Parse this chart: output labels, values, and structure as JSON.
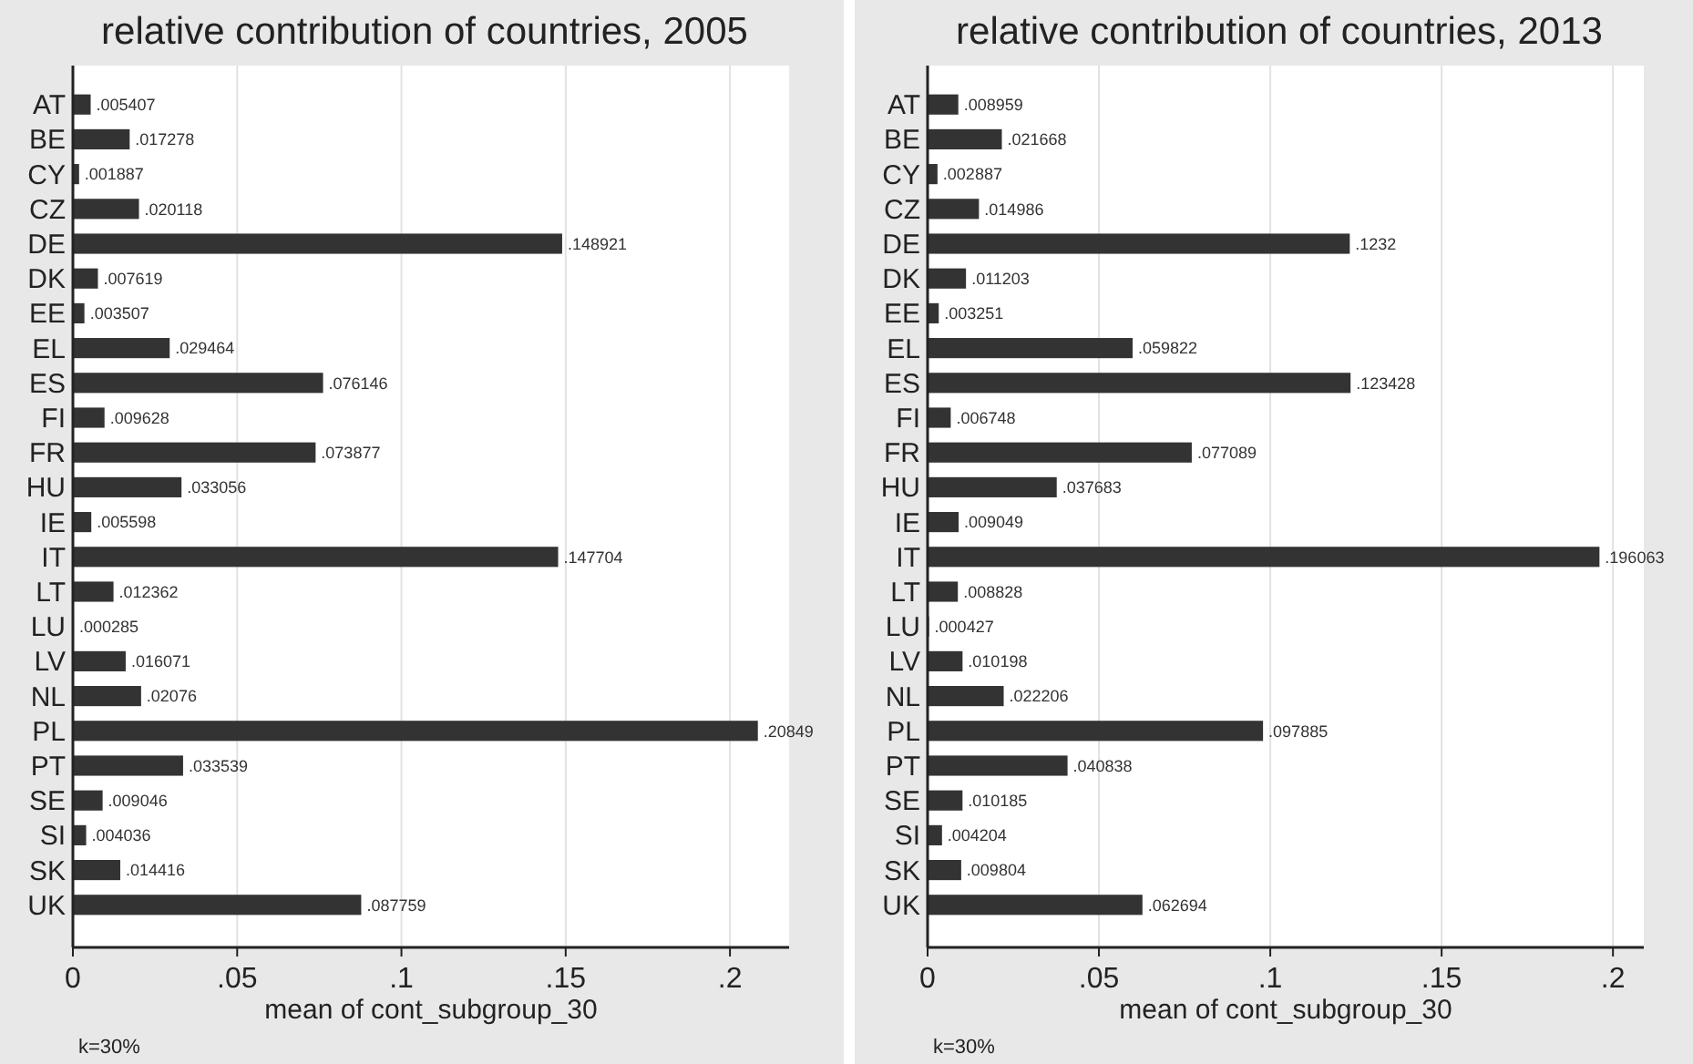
{
  "chart_data": [
    {
      "type": "bar",
      "orientation": "horizontal",
      "title": "relative contribution of countries, 2005",
      "xlabel": "mean of cont_subgroup_30",
      "categories": [
        "AT",
        "BE",
        "CY",
        "CZ",
        "DE",
        "DK",
        "EE",
        "EL",
        "ES",
        "FI",
        "FR",
        "HU",
        "IE",
        "IT",
        "LT",
        "LU",
        "LV",
        "NL",
        "PL",
        "PT",
        "SE",
        "SI",
        "SK",
        "UK"
      ],
      "values": [
        0.005407,
        0.017278,
        0.001887,
        0.020118,
        0.148921,
        0.007619,
        0.003507,
        0.029464,
        0.076146,
        0.009628,
        0.073877,
        0.033056,
        0.005598,
        0.147704,
        0.012362,
        0.000285,
        0.016071,
        0.02076,
        0.20849,
        0.033539,
        0.009046,
        0.004036,
        0.014416,
        0.087759
      ],
      "value_labels": [
        ".005407",
        ".017278",
        ".001887",
        ".020118",
        ".148921",
        ".007619",
        ".003507",
        ".029464",
        ".076146",
        ".009628",
        ".073877",
        ".033056",
        ".005598",
        ".147704",
        ".012362",
        ".000285",
        ".016071",
        ".02076",
        ".20849",
        ".033539",
        ".009046",
        ".004036",
        ".014416",
        ".087759"
      ],
      "color": "#333333",
      "xlim": [
        0,
        0.218
      ],
      "xticks": [
        0,
        {
          "value": 0.05,
          "label": ".05"
        },
        {
          "value": 0.1,
          "label": ".1"
        },
        {
          "value": 0.15,
          "label": ".15"
        },
        {
          "value": 0.2,
          "label": ".2"
        }
      ],
      "grid": "x",
      "annotations": [
        "k=30%"
      ]
    },
    {
      "type": "bar",
      "orientation": "horizontal",
      "title": "relative contribution of countries, 2013",
      "xlabel": "mean of cont_subgroup_30",
      "categories": [
        "AT",
        "BE",
        "CY",
        "CZ",
        "DE",
        "DK",
        "EE",
        "EL",
        "ES",
        "FI",
        "FR",
        "HU",
        "IE",
        "IT",
        "LT",
        "LU",
        "LV",
        "NL",
        "PL",
        "PT",
        "SE",
        "SI",
        "SK",
        "UK"
      ],
      "values": [
        0.008959,
        0.021668,
        0.002887,
        0.014986,
        0.1232,
        0.011203,
        0.003251,
        0.059822,
        0.123428,
        0.006748,
        0.077089,
        0.037683,
        0.009049,
        0.196063,
        0.008828,
        0.000427,
        0.010198,
        0.022206,
        0.097885,
        0.040838,
        0.010185,
        0.004204,
        0.009804,
        0.062694
      ],
      "value_labels": [
        ".008959",
        ".021668",
        ".002887",
        ".014986",
        ".1232",
        ".011203",
        ".003251",
        ".059822",
        ".123428",
        ".006748",
        ".077089",
        ".037683",
        ".009049",
        ".196063",
        ".008828",
        ".000427",
        ".010198",
        ".022206",
        ".097885",
        ".040838",
        ".010185",
        ".004204",
        ".009804",
        ".062694"
      ],
      "color": "#333333",
      "xlim": [
        0,
        0.209
      ],
      "xticks": [
        0,
        {
          "value": 0.05,
          "label": ".05"
        },
        {
          "value": 0.1,
          "label": ".1"
        },
        {
          "value": 0.15,
          "label": ".15"
        },
        {
          "value": 0.2,
          "label": ".2"
        }
      ],
      "grid": "x",
      "annotations": [
        "k=30%"
      ]
    }
  ]
}
